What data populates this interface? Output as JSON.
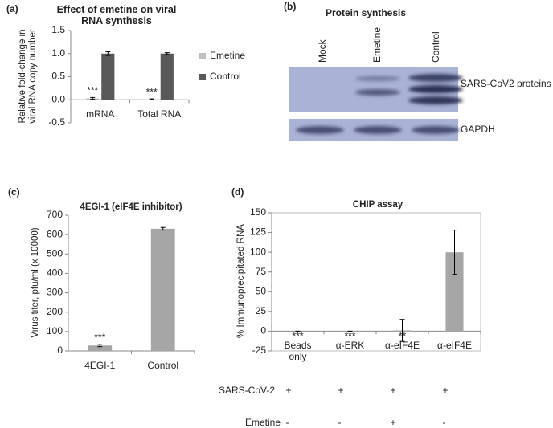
{
  "chart_data": [
    {
      "type": "bar",
      "panel": "(a)",
      "title": "Effect of emetine on viral RNA synthesis",
      "y_label": "Relative fold-change in viral RNA copy number",
      "categories": [
        "mRNA",
        "Total RNA"
      ],
      "series": [
        {
          "name": "Emetine",
          "color": "#bfbfbf",
          "values": [
            0.03,
            0.01
          ],
          "errors": [
            0.02,
            0.01
          ]
        },
        {
          "name": "Control",
          "color": "#595959",
          "values": [
            1.0,
            1.0
          ],
          "errors": [
            0.04,
            0.02
          ]
        }
      ],
      "ylim": [
        -0.5,
        1.5
      ],
      "yticks": [
        -0.5,
        {
          "value": 0,
          "label": "0.0"
        },
        0.5,
        {
          "value": 1,
          "label": "1.0"
        },
        1.5
      ],
      "annotations": [
        {
          "category": 0,
          "series": 0,
          "text": "***"
        },
        {
          "category": 1,
          "series": 0,
          "text": "***"
        }
      ],
      "legend": "right"
    },
    {
      "type": "bar",
      "panel": "(c)",
      "title": "4EGI-1 (eIF4E inhibitor)",
      "y_label": "Virus titer, pfu/ml (x 10000)",
      "categories": [
        "4EGI-1",
        "Control"
      ],
      "series": [
        {
          "color": "#a6a6a6",
          "values": [
            28,
            630
          ],
          "errors": [
            6,
            7
          ]
        }
      ],
      "ylim": [
        0,
        700
      ],
      "yticks": [
        0,
        100,
        200,
        300,
        400,
        500,
        600,
        700
      ],
      "annotations": [
        {
          "category": 0,
          "series": 0,
          "text": "***"
        }
      ]
    },
    {
      "type": "bar",
      "panel": "(d)",
      "title": "CHIP assay",
      "y_label": "% Immunoprecipitated RNA",
      "categories": [
        "Beads only",
        "α-ERK",
        "α-eIF4E",
        "α-eIF4E"
      ],
      "series": [
        {
          "color": "#a6a6a6",
          "values": [
            0,
            0,
            1,
            100
          ],
          "errors": [
            0,
            0,
            14,
            28
          ]
        }
      ],
      "ylim": [
        -25,
        150
      ],
      "yticks": [
        -25,
        0,
        25,
        50,
        75,
        100,
        125,
        150
      ],
      "frame": true,
      "annotations": [
        {
          "category": 0,
          "series": 0,
          "text": "***"
        },
        {
          "category": 1,
          "series": 0,
          "text": "***"
        },
        {
          "category": 2,
          "series": 0,
          "text": "**"
        }
      ],
      "conditions": [
        {
          "label": "SARS-CoV-2",
          "signs": [
            "+",
            "+",
            "+",
            "+"
          ]
        },
        {
          "label": "Emetine",
          "signs": [
            "-",
            "-",
            "+",
            "-"
          ]
        }
      ]
    }
  ],
  "blot": {
    "panel": "(b)",
    "title": "Protein synthesis",
    "lanes": [
      "Mock",
      "Emetine",
      "Control"
    ],
    "bands": [
      "SARS-CoV2 proteins",
      "GAPDH"
    ]
  }
}
